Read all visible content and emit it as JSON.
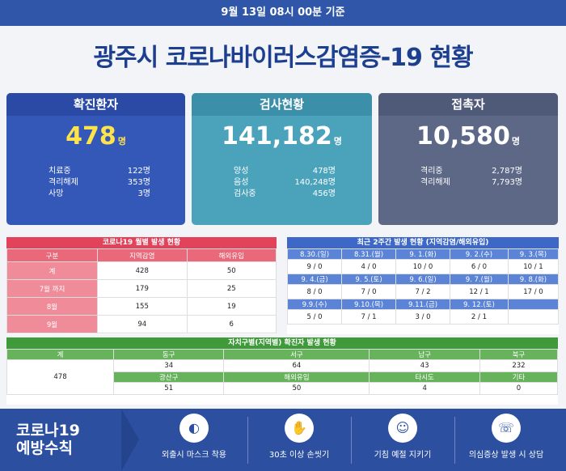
{
  "header": {
    "date": "9월 13일 08시 00분 기준",
    "title": "광주시 코로나바이러스감염증-19 현황"
  },
  "cards": [
    {
      "label": "확진환자",
      "value": "478",
      "unit": "명",
      "rows": [
        {
          "k": "치료중",
          "v": "122명"
        },
        {
          "k": "격리해제",
          "v": "353명"
        },
        {
          "k": "사망",
          "v": "3명"
        }
      ]
    },
    {
      "label": "검사현황",
      "value": "141,182",
      "unit": "명",
      "rows": [
        {
          "k": "양성",
          "v": "478명"
        },
        {
          "k": "음성",
          "v": "140,248명"
        },
        {
          "k": "검사중",
          "v": "456명"
        }
      ]
    },
    {
      "label": "접촉자",
      "value": "10,580",
      "unit": "명",
      "rows": [
        {
          "k": "격리중",
          "v": "2,787명"
        },
        {
          "k": "격리해제",
          "v": "7,793명"
        }
      ]
    }
  ],
  "monthly": {
    "title": "코로나19 월별 발생 현황",
    "headers": [
      "구분",
      "지역감염",
      "해외유입"
    ],
    "rows": [
      [
        "계",
        "428",
        "50"
      ],
      [
        "7월 까지",
        "179",
        "25"
      ],
      [
        "8월",
        "155",
        "19"
      ],
      [
        "9월",
        "94",
        "6"
      ]
    ]
  },
  "weekly": {
    "title": "최근 2주간 발생 현황 (지역감염/해외유입)",
    "weeks": [
      {
        "dates": [
          "8.30.(일)",
          "8.31.(월)",
          "9. 1.(화)",
          "9. 2.(수)",
          "9. 3.(목)"
        ],
        "vals": [
          "9 / 0",
          "4 / 0",
          "10 / 0",
          "6 / 0",
          "10 / 1"
        ]
      },
      {
        "dates": [
          "9. 4.(금)",
          "9. 5.(토)",
          "9. 6.(일)",
          "9. 7.(월)",
          "9. 8.(화)"
        ],
        "vals": [
          "8 / 0",
          "7 / 0",
          "7 / 2",
          "12 / 1",
          "17 / 0"
        ]
      },
      {
        "dates": [
          "9.9.(수)",
          "9.10.(목)",
          "9.11.(금)",
          "9. 12.(토)",
          ""
        ],
        "vals": [
          "5 / 0",
          "7 / 1",
          "3 / 0",
          "2 / 1",
          ""
        ]
      }
    ]
  },
  "district": {
    "title": "자치구별(지역별) 확진자 발생 현황",
    "total_label": "계",
    "total": "478",
    "row1_headers": [
      "동구",
      "서구",
      "남구",
      "북구"
    ],
    "row1_values": [
      "34",
      "64",
      "43",
      "232"
    ],
    "row2_headers": [
      "광산구",
      "해외유입",
      "타시도",
      "기타"
    ],
    "row2_values": [
      "51",
      "50",
      "4",
      "0"
    ]
  },
  "prevention": {
    "title_line1": "코로나19",
    "title_line2": "예방수칙",
    "tips": [
      {
        "icon": "mask-icon",
        "glyph": "◐",
        "label": "외출시 마스크 착용"
      },
      {
        "icon": "handwash-icon",
        "glyph": "✋",
        "label": "30초 이상 손씻기"
      },
      {
        "icon": "cough-icon",
        "glyph": "☺",
        "label": "기침 예절 지키기"
      },
      {
        "icon": "phone-icon",
        "glyph": "☏",
        "label": "의심증상 발생 시 상담"
      }
    ]
  }
}
